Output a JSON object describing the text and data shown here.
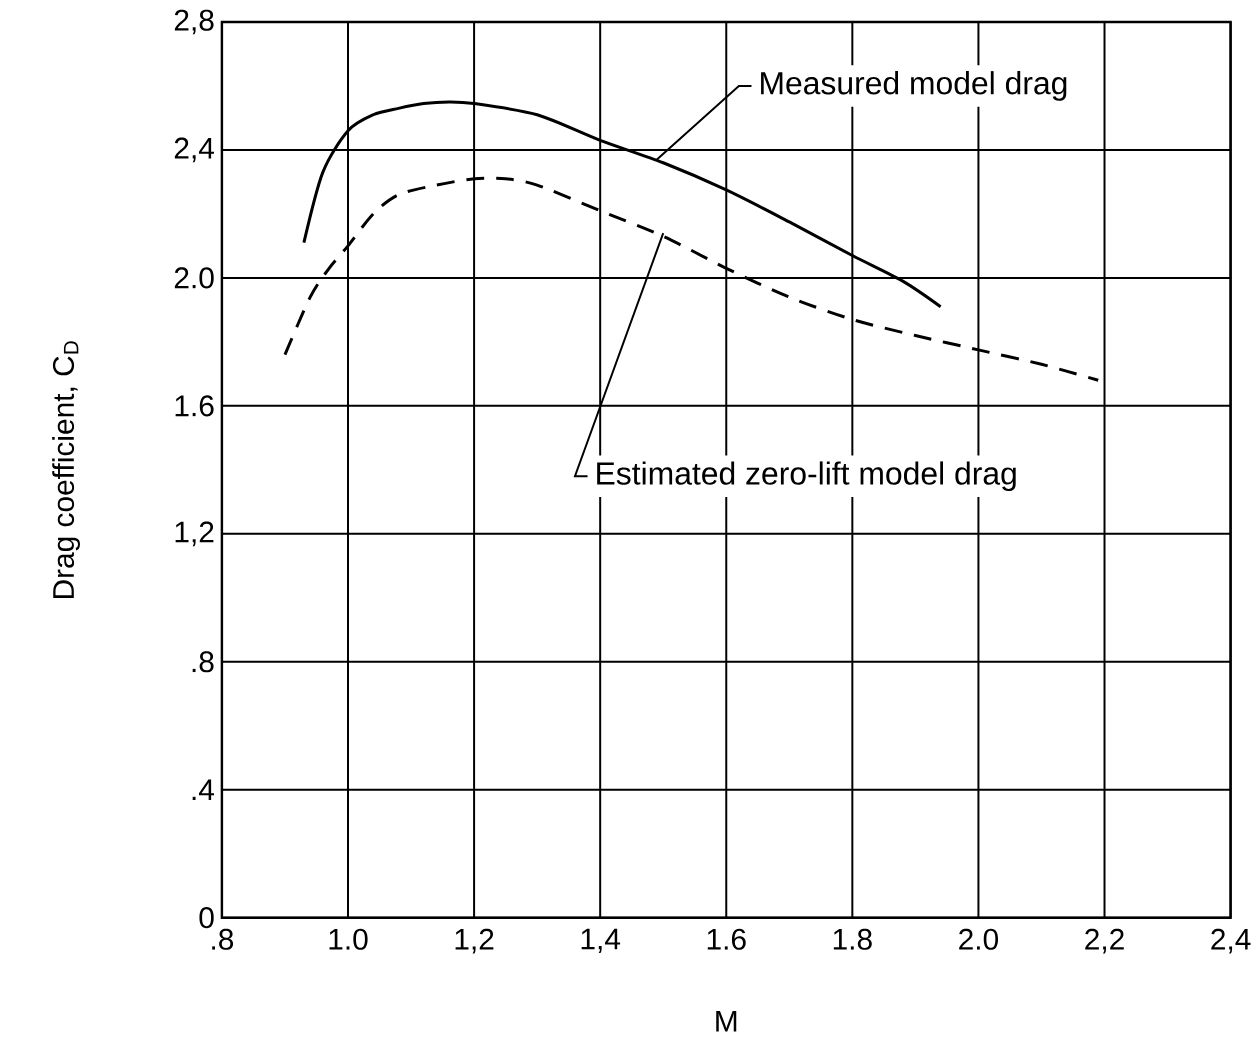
{
  "chart_data": {
    "type": "line",
    "xlabel": "M",
    "ylabel": "Drag coefficient, C$_{D}$",
    "xlim": [
      0.8,
      2.4
    ],
    "ylim": [
      0,
      2.8
    ],
    "xticks": [
      {
        "value": 0.8,
        "label": ".8"
      },
      {
        "value": 1.0,
        "label": "1.0"
      },
      {
        "value": 1.2,
        "label": "1,2"
      },
      {
        "value": 1.4,
        "label": "1,4"
      },
      {
        "value": 1.6,
        "label": "1.6"
      },
      {
        "value": 1.8,
        "label": "1.8"
      },
      {
        "value": 2.0,
        "label": "2.0"
      },
      {
        "value": 2.2,
        "label": "2,2"
      },
      {
        "value": 2.4,
        "label": "2,4"
      }
    ],
    "yticks": [
      0,
      {
        "value": 0.4,
        "label": ".4"
      },
      {
        "value": 0.8,
        "label": ".8"
      },
      {
        "value": 1.2,
        "label": "1,2"
      },
      {
        "value": 1.6,
        "label": "1.6"
      },
      {
        "value": 2.0,
        "label": "2.0"
      },
      {
        "value": 2.4,
        "label": "2,4"
      },
      {
        "value": 2.8,
        "label": "2,8"
      }
    ],
    "grid": true,
    "series": [
      {
        "color": "#000000",
        "line_style": "solid",
        "x": [
          0.93,
          0.96,
          1.0,
          1.04,
          1.08,
          1.12,
          1.16,
          1.2,
          1.3,
          1.4,
          1.5,
          1.6,
          1.7,
          1.8,
          1.88,
          1.94
        ],
        "values": [
          2.11,
          2.33,
          2.46,
          2.51,
          2.53,
          2.545,
          2.55,
          2.545,
          2.51,
          2.43,
          2.36,
          2.275,
          2.175,
          2.07,
          1.99,
          1.91
        ]
      },
      {
        "color": "#000000",
        "line_style": "dashed",
        "x": [
          0.9,
          0.94,
          0.97,
          1.0,
          1.04,
          1.08,
          1.14,
          1.2,
          1.25,
          1.3,
          1.4,
          1.5,
          1.6,
          1.7,
          1.8,
          1.9,
          2.0,
          2.1,
          2.19
        ],
        "values": [
          1.76,
          1.94,
          2.03,
          2.1,
          2.2,
          2.26,
          2.29,
          2.31,
          2.31,
          2.29,
          2.21,
          2.13,
          2.03,
          1.94,
          1.87,
          1.82,
          1.775,
          1.73,
          1.68
        ]
      }
    ],
    "annotations": [
      {
        "text": "Measured model drag",
        "x": 1.49,
        "y": 2.37
      },
      {
        "text": "Estimated zero-lift model drag",
        "x": 1.5,
        "y": 2.14
      }
    ]
  }
}
